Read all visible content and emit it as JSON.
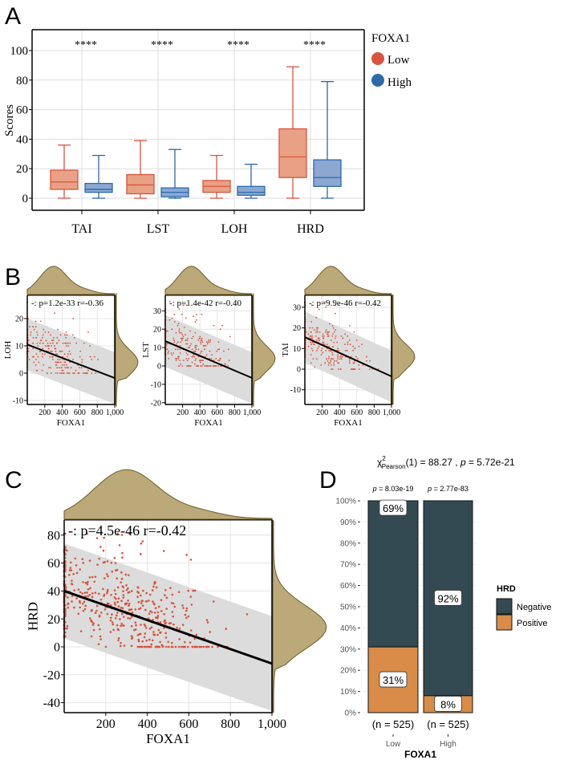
{
  "panels": {
    "a": "A",
    "b": "B",
    "c": "C",
    "d": "D"
  },
  "colors": {
    "low": "#d9543e",
    "low_fill": "#e8a184",
    "high": "#2a6aa8",
    "high_fill": "#8ca7d2",
    "density": "#bba97a",
    "density_stroke": "#6e5d22",
    "point": "#d5533e",
    "band": "#dcdcdc",
    "negative": "#344a52",
    "positive": "#d98c47"
  },
  "chart_data": [
    {
      "type": "box",
      "panel": "A",
      "ylabel": "Scores",
      "categories": [
        "TAI",
        "LST",
        "LOH",
        "HRD"
      ],
      "significance": [
        "****",
        "****",
        "****",
        "****"
      ],
      "ylim": [
        -7,
        112
      ],
      "yticks": [
        "0",
        "20",
        "40",
        "60",
        "80",
        "100"
      ],
      "grid": true,
      "legend": {
        "title": "FOXA1",
        "position": "right",
        "entries": [
          "Low",
          "High"
        ]
      },
      "series": [
        {
          "name": "Low",
          "stats": [
            {
              "min": 0,
              "q1": 6,
              "median": 11,
              "q3": 19,
              "max": 36
            },
            {
              "min": 0,
              "q1": 3,
              "median": 9,
              "q3": 16,
              "max": 39
            },
            {
              "min": 0,
              "q1": 4,
              "median": 8,
              "q3": 12,
              "max": 29
            },
            {
              "min": 0,
              "q1": 14,
              "median": 28,
              "q3": 47,
              "max": 89
            }
          ]
        },
        {
          "name": "High",
          "stats": [
            {
              "min": 0,
              "q1": 4,
              "median": 6,
              "q3": 10,
              "max": 29
            },
            {
              "min": 0,
              "q1": 1,
              "median": 4,
              "q3": 7,
              "max": 33
            },
            {
              "min": 0,
              "q1": 2,
              "median": 4,
              "q3": 8,
              "max": 23
            },
            {
              "min": 0,
              "q1": 8,
              "median": 14,
              "q3": 26,
              "max": 79
            }
          ]
        }
      ]
    },
    {
      "type": "scatter",
      "panel": "B",
      "xlabel": "FOXA1",
      "ylabel": "LOH",
      "annotation": "-: p=1.2e-33 r=-0.36",
      "xlim": [
        0,
        1000
      ],
      "ylim": [
        -12,
        29
      ],
      "xticks": [
        "200",
        "400",
        "600",
        "800",
        "1,000"
      ],
      "yticks": [
        "-10",
        "0",
        "10",
        "20"
      ],
      "fit": {
        "x": [
          0,
          1000
        ],
        "y": [
          10.5,
          -1.8
        ]
      },
      "band_halfwidth": 9.5,
      "marginal_densities": true
    },
    {
      "type": "scatter",
      "panel": "B",
      "xlabel": "FOXA1",
      "ylabel": "LST",
      "annotation": "-: p=1.4e-42 r=-0.40",
      "xlim": [
        0,
        1000
      ],
      "ylim": [
        -22,
        39
      ],
      "xticks": [
        "200",
        "400",
        "600",
        "800",
        "1,000"
      ],
      "yticks": [
        "-20",
        "-10",
        "0",
        "10",
        "20",
        "30"
      ],
      "fit": {
        "x": [
          0,
          1000
        ],
        "y": [
          13.5,
          -6.5
        ]
      },
      "band_halfwidth": 14,
      "marginal_densities": true
    },
    {
      "type": "scatter",
      "panel": "B",
      "xlabel": "FOXA1",
      "ylabel": "TAI",
      "annotation": "-: p=9.9e-46 r=-0.42",
      "xlim": [
        0,
        1000
      ],
      "ylim": [
        -17,
        36
      ],
      "xticks": [
        "200",
        "400",
        "600",
        "800",
        "1,000"
      ],
      "yticks": [
        "-10",
        "0",
        "10",
        "20",
        "30"
      ],
      "fit": {
        "x": [
          0,
          1000
        ],
        "y": [
          15.5,
          -3.5
        ]
      },
      "band_halfwidth": 12.5,
      "marginal_densities": true
    },
    {
      "type": "scatter",
      "panel": "C",
      "xlabel": "FOXA1",
      "ylabel": "HRD",
      "annotation": "-: p=4.5e-46 r=-0.42",
      "xlim": [
        0,
        1000
      ],
      "ylim": [
        -47,
        90
      ],
      "xticks": [
        "200",
        "400",
        "600",
        "800",
        "1,000"
      ],
      "yticks": [
        "-40",
        "-20",
        "0",
        "20",
        "40",
        "60",
        "80"
      ],
      "fit": {
        "x": [
          0,
          1000
        ],
        "y": [
          40,
          -12
        ]
      },
      "band_halfwidth": 34,
      "marginal_densities": true
    },
    {
      "type": "bar",
      "stacked": true,
      "panel": "D",
      "title": "χ²Pearson(1) = 88.27, p = 5.72e-21",
      "title_parts": {
        "chi": "χ",
        "sup": "2",
        "sub": "Pearson",
        "rest": "(1) = 88.27 , ",
        "p": "p",
        "pval": " = 5.72e-21"
      },
      "xlabel": "FOXA1",
      "categories": [
        "Low",
        "High"
      ],
      "category_p": [
        "8.03e-19",
        "2.77e-83"
      ],
      "p_prefix": "p",
      "n_labels": [
        "(n = 525)",
        "(n = 525)"
      ],
      "yticks": [
        "0%",
        "10%",
        "20%",
        "30%",
        "40%",
        "50%",
        "60%",
        "70%",
        "80%",
        "90%",
        "100%"
      ],
      "legend": {
        "title": "HRD",
        "position": "right",
        "entries": [
          "Negative",
          "Positive"
        ]
      },
      "series": [
        {
          "name": "Negative",
          "values": [
            69,
            92
          ],
          "labels": [
            "69%",
            "92%"
          ]
        },
        {
          "name": "Positive",
          "values": [
            31,
            8
          ],
          "labels": [
            "31%",
            "8%"
          ]
        }
      ]
    }
  ]
}
